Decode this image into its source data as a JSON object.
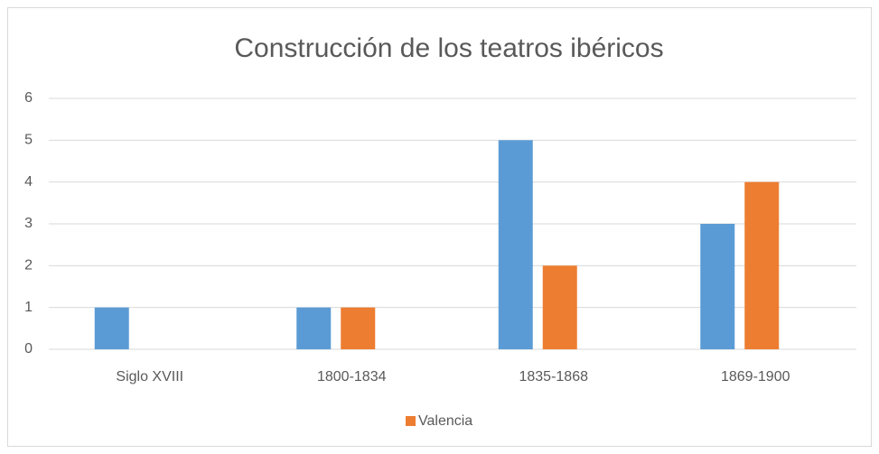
{
  "chart_data": {
    "type": "bar",
    "title": "Construcción de los teatros ibéricos",
    "categories": [
      "Siglo XVIII",
      "1800-1834",
      "1835-1868",
      "1869-1900"
    ],
    "series": [
      {
        "color": "#5b9bd5",
        "values": [
          1,
          1,
          5,
          3
        ]
      },
      {
        "name": "Valencia",
        "color": "#ed7d31",
        "values": [
          0,
          1,
          2,
          4
        ]
      }
    ],
    "ylim": [
      0,
      6
    ],
    "yticks": [
      0,
      1,
      2,
      3,
      4,
      5,
      6
    ],
    "grid": true,
    "legend": "bottom"
  }
}
